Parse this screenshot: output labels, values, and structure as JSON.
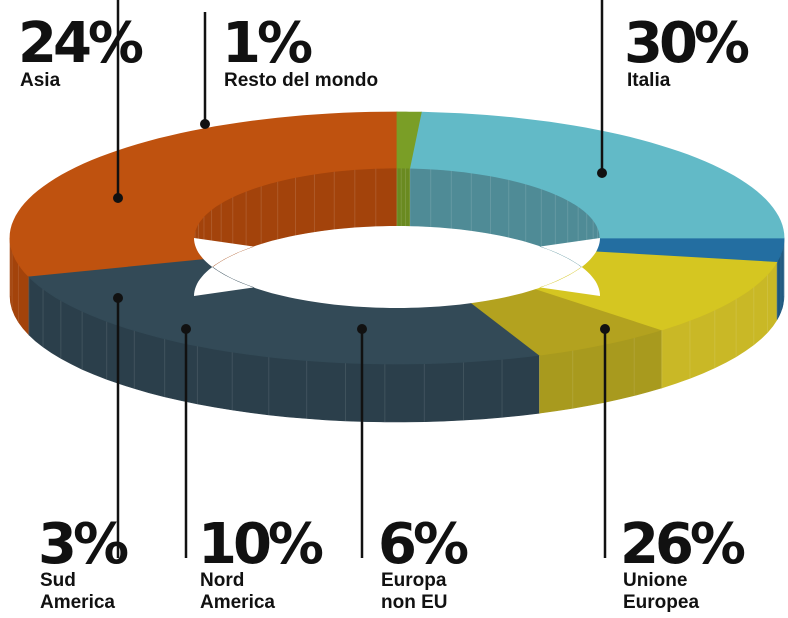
{
  "chart_data": {
    "type": "pie",
    "style": "3d-donut",
    "slices": [
      {
        "name": "Italia",
        "value": 30,
        "label": "30%",
        "color": "#bf520f",
        "wall": "#a3430b"
      },
      {
        "name": "Unione Europea",
        "value": 26,
        "label": "26%",
        "color": "#334a57",
        "wall": "#2b3f4b",
        "line2": "Europea",
        "line1": "Unione"
      },
      {
        "name": "Europa non EU",
        "value": 6,
        "label": "6%",
        "color": "#b3a21f",
        "wall": "#a89a1e",
        "line1": "Europa",
        "line2": "non EU"
      },
      {
        "name": "Nord America",
        "value": 10,
        "label": "10%",
        "color": "#d5c621",
        "wall": "#c9b826",
        "line1": "Nord",
        "line2": "America"
      },
      {
        "name": "Sud America",
        "value": 3,
        "label": "3%",
        "color": "#236ea1",
        "wall": "#1c567e",
        "line1": "Sud",
        "line2": "America"
      },
      {
        "name": "Asia",
        "value": 24,
        "label": "24%",
        "color": "#62bac7",
        "wall": "#4f8b96"
      },
      {
        "name": "Resto del mondo",
        "value": 1,
        "label": "1%",
        "color": "#7a9e26",
        "wall": "#6a8a20"
      }
    ],
    "legend": "none",
    "grid": false
  }
}
